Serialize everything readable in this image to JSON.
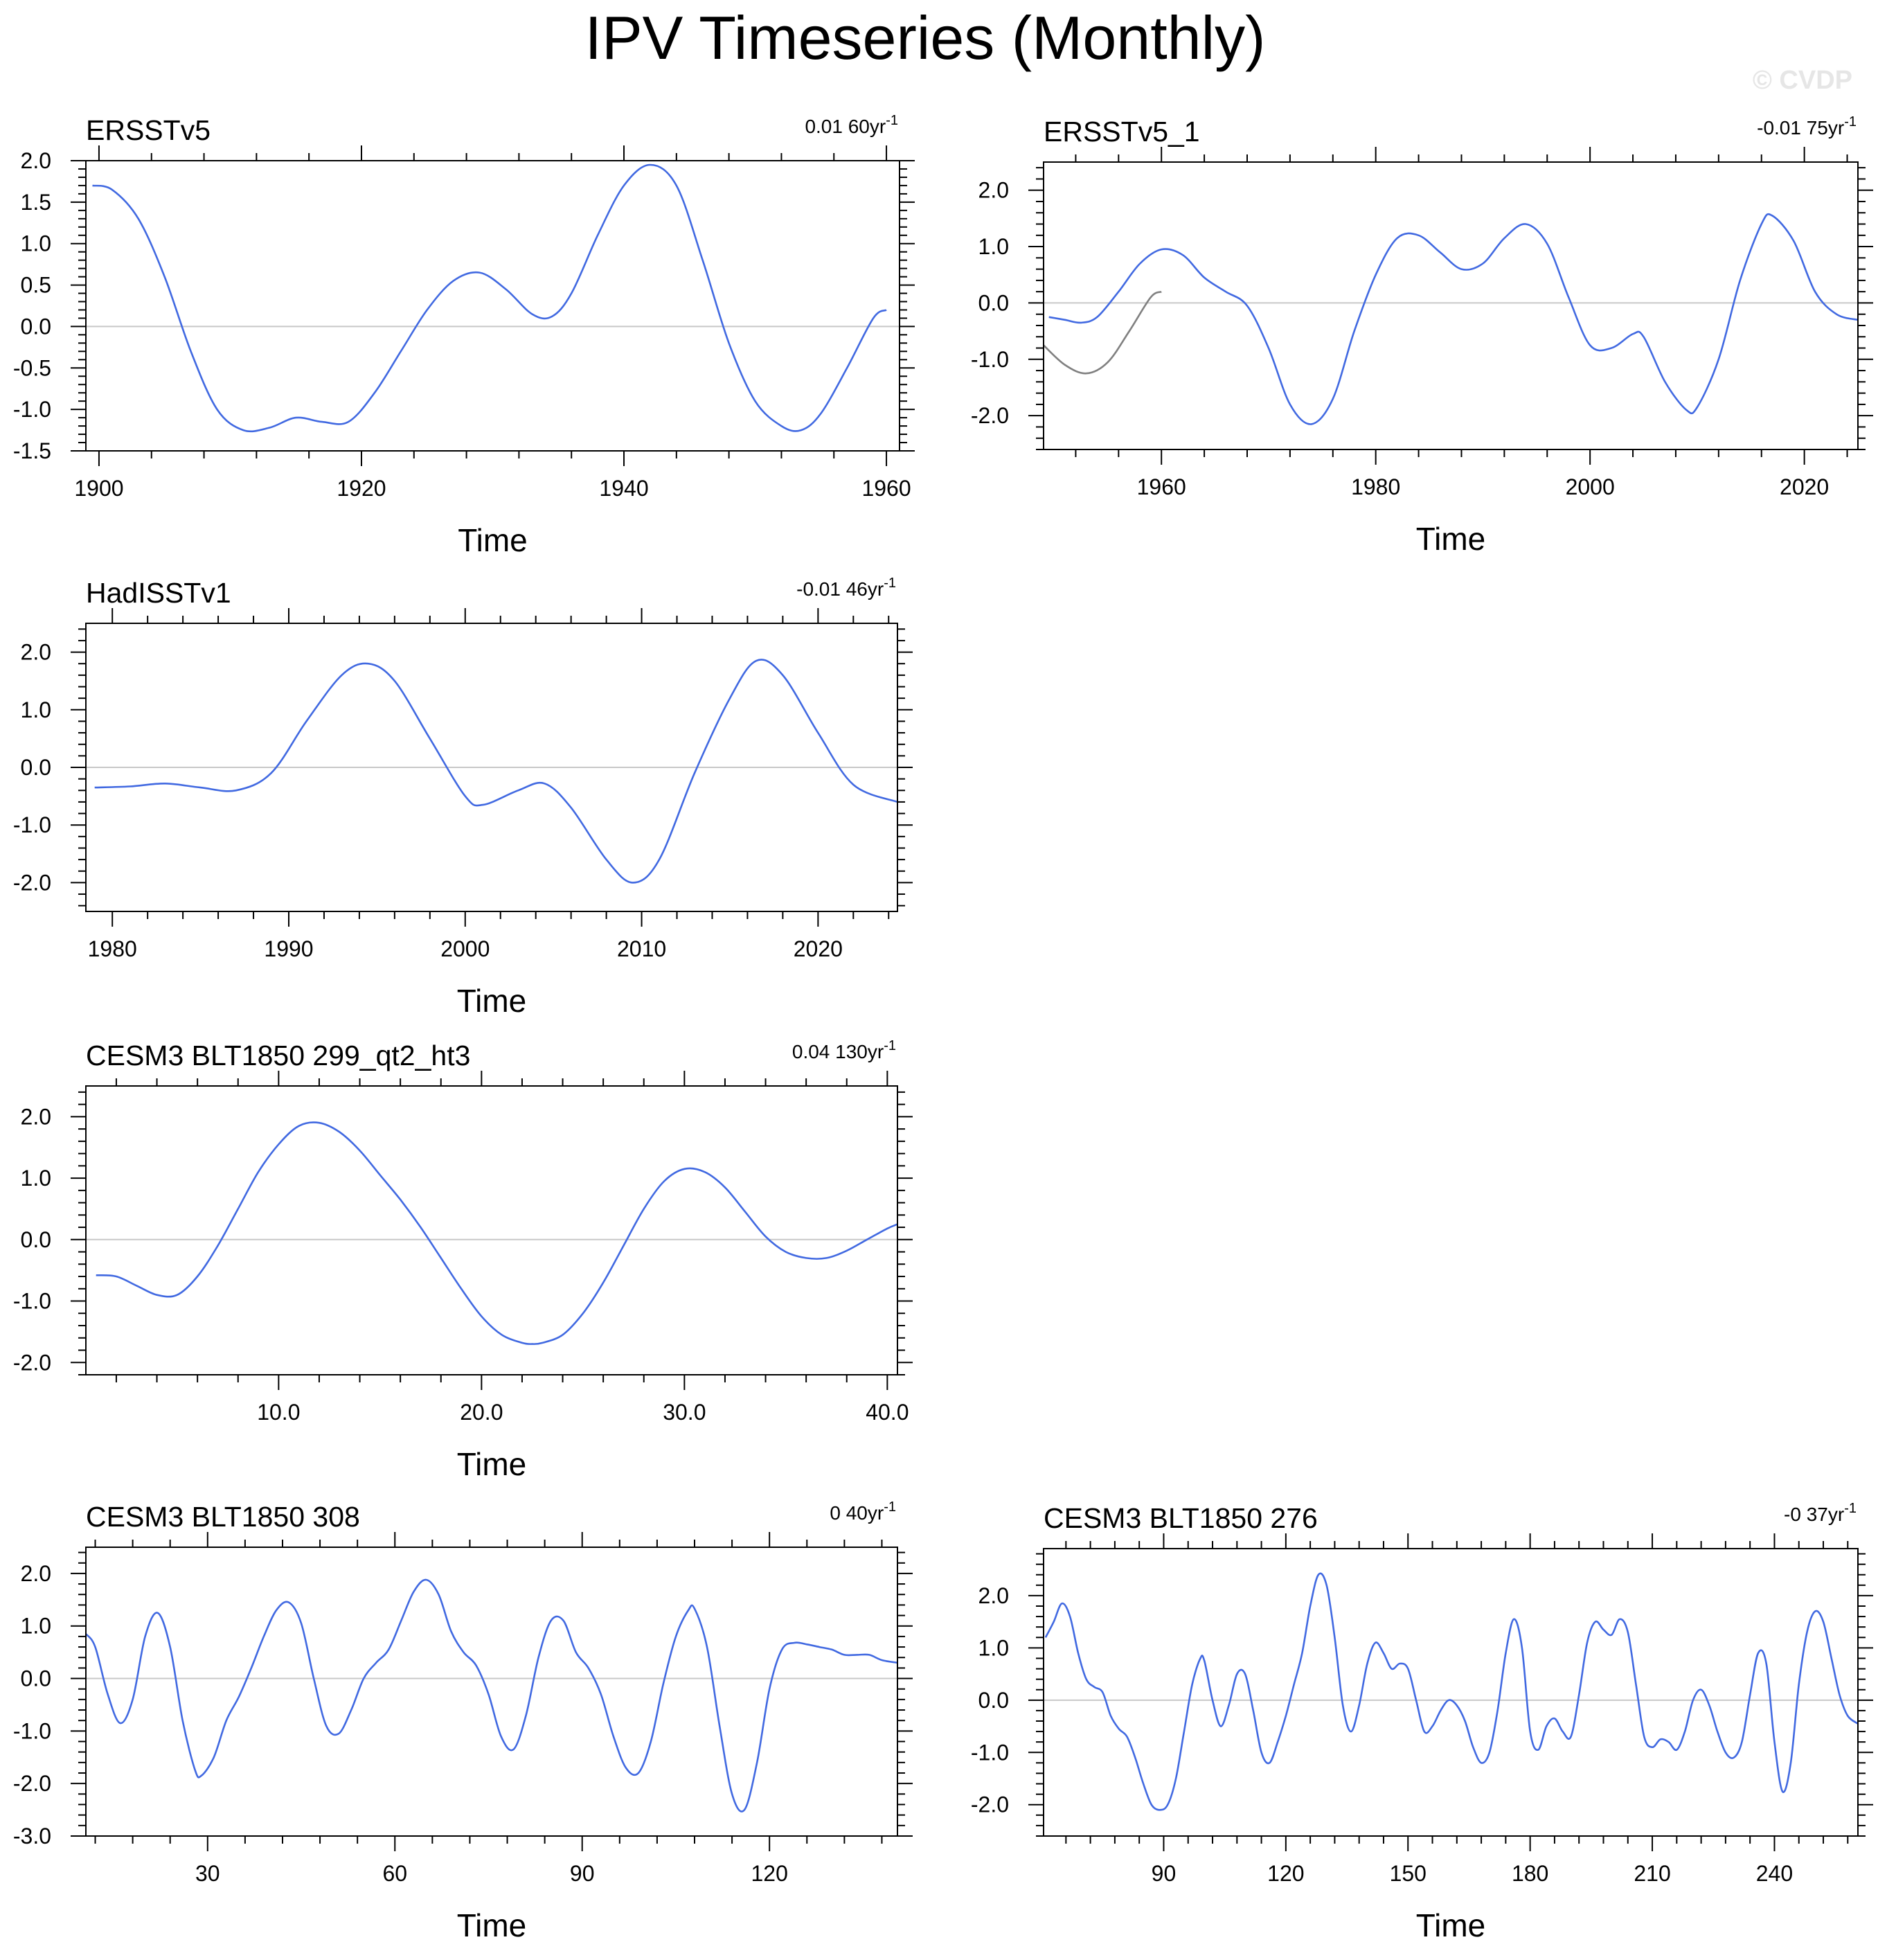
{
  "figure": {
    "title": "IPV Timeseries (Monthly)",
    "watermark": "© CVDP"
  },
  "colors": {
    "series_line": "#4169e1",
    "secondary_line": "#808080",
    "zero_line": "#c8c8c8",
    "frame": "#000000"
  },
  "chart_data": [
    {
      "id": "ersstv5",
      "type": "line",
      "title": "ERSSTv5",
      "trend": "0.01 60yr",
      "trend_sup": "-1",
      "xlabel": "Time",
      "ylabel": "",
      "xlim": [
        1899,
        1961
      ],
      "ylim": [
        -1.5,
        2.0
      ],
      "zero_line": true,
      "xticks": [
        1900,
        1920,
        1940,
        1960
      ],
      "xtick_labels": [
        "1900",
        "1920",
        "1940",
        "1960"
      ],
      "yticks": [
        -1.5,
        -1.0,
        -0.5,
        0.0,
        0.5,
        1.0,
        1.5,
        2.0
      ],
      "ytick_labels": [
        "-1.5",
        "-1.0",
        "-0.5",
        "0.0",
        "0.5",
        "1.0",
        "1.5",
        "2.0"
      ],
      "series": [
        {
          "color": "#4169e1",
          "x": [
            1899.5,
            1901,
            1903,
            1905,
            1907,
            1909,
            1911,
            1913,
            1915,
            1917,
            1919,
            1921,
            1923,
            1925,
            1927,
            1929,
            1931,
            1933,
            1934.5,
            1936,
            1938,
            1940,
            1942,
            1944,
            1946,
            1948,
            1950,
            1952,
            1953.5,
            1955,
            1957,
            1959,
            1960
          ],
          "y": [
            1.7,
            1.65,
            1.3,
            0.6,
            -0.3,
            -1.0,
            -1.25,
            -1.22,
            -1.1,
            -1.15,
            -1.15,
            -0.8,
            -0.3,
            0.2,
            0.55,
            0.65,
            0.45,
            0.15,
            0.12,
            0.4,
            1.1,
            1.7,
            1.95,
            1.7,
            0.8,
            -0.2,
            -0.9,
            -1.2,
            -1.25,
            -1.05,
            -0.5,
            0.1,
            0.2
          ]
        }
      ]
    },
    {
      "id": "ersstv5_1",
      "type": "line",
      "title": "ERSSTv5_1",
      "trend": "-0.01 75yr",
      "trend_sup": "-1",
      "xlabel": "Time",
      "ylabel": "",
      "xlim": [
        1949,
        2025
      ],
      "ylim": [
        -2.6,
        2.5
      ],
      "zero_line": true,
      "xticks": [
        1960,
        1980,
        2000,
        2020
      ],
      "xtick_labels": [
        "1960",
        "1980",
        "2000",
        "2020"
      ],
      "yticks": [
        -2.0,
        -1.0,
        0.0,
        1.0,
        2.0
      ],
      "ytick_labels": [
        "-2.0",
        "-1.0",
        "0.0",
        "1.0",
        "2.0"
      ],
      "series": [
        {
          "color": "#808080",
          "x": [
            1949,
            1951,
            1953,
            1955,
            1957,
            1959,
            1960
          ],
          "y": [
            -0.75,
            -1.1,
            -1.25,
            -1.05,
            -0.5,
            0.1,
            0.2
          ]
        },
        {
          "color": "#4169e1",
          "x": [
            1949.5,
            1951,
            1952.5,
            1954,
            1956,
            1958,
            1960,
            1962,
            1964,
            1966,
            1968,
            1970,
            1972,
            1974,
            1976,
            1978,
            1980,
            1982,
            1984,
            1986,
            1988,
            1990,
            1992,
            1994,
            1996,
            1998,
            2000,
            2002,
            2004,
            2005,
            2007,
            2009,
            2010,
            2012,
            2014,
            2016,
            2017,
            2019,
            2021,
            2023,
            2025
          ],
          "y": [
            -0.25,
            -0.3,
            -0.35,
            -0.25,
            0.2,
            0.7,
            0.95,
            0.85,
            0.45,
            0.2,
            -0.05,
            -0.8,
            -1.8,
            -2.15,
            -1.7,
            -0.5,
            0.5,
            1.15,
            1.2,
            0.9,
            0.6,
            0.7,
            1.15,
            1.4,
            1.05,
            0.1,
            -0.75,
            -0.8,
            -0.55,
            -0.6,
            -1.4,
            -1.9,
            -1.85,
            -1.0,
            0.4,
            1.4,
            1.55,
            1.1,
            0.2,
            -0.2,
            -0.3
          ]
        }
      ]
    },
    {
      "id": "hadisstv1",
      "type": "line",
      "title": "HadISSTv1",
      "trend": "-0.01 46yr",
      "trend_sup": "-1",
      "xlabel": "Time",
      "ylabel": "",
      "xlim": [
        1978.5,
        2024.5
      ],
      "ylim": [
        -2.5,
        2.5
      ],
      "zero_line": true,
      "xticks": [
        1980,
        1990,
        2000,
        2010,
        2020
      ],
      "xtick_labels": [
        "1980",
        "1990",
        "2000",
        "2010",
        "2020"
      ],
      "yticks": [
        -2.0,
        -1.0,
        0.0,
        1.0,
        2.0
      ],
      "ytick_labels": [
        "-2.0",
        "-1.0",
        "0.0",
        "1.0",
        "2.0"
      ],
      "series": [
        {
          "color": "#4169e1",
          "x": [
            1979,
            1981,
            1983,
            1985,
            1987,
            1989,
            1991,
            1993,
            1994.5,
            1996,
            1998,
            2000,
            2001,
            2003,
            2004.5,
            2006,
            2008,
            2009.5,
            2011,
            2013,
            2015,
            2016.5,
            2018,
            2020,
            2022,
            2024.5
          ],
          "y": [
            -0.35,
            -0.33,
            -0.28,
            -0.35,
            -0.4,
            -0.1,
            0.8,
            1.6,
            1.8,
            1.5,
            0.5,
            -0.5,
            -0.65,
            -0.4,
            -0.28,
            -0.7,
            -1.6,
            -2.0,
            -1.6,
            -0.1,
            1.2,
            1.85,
            1.6,
            0.6,
            -0.3,
            -0.6
          ]
        }
      ]
    },
    {
      "id": "cesm3_299",
      "type": "line",
      "title": "CESM3 BLT1850 299_qt2_ht3",
      "trend": "0.04 130yr",
      "trend_sup": "-1",
      "xlabel": "Time",
      "ylabel": "",
      "xlim": [
        0.5,
        40.5
      ],
      "ylim": [
        -2.2,
        2.5
      ],
      "zero_line": true,
      "xticks": [
        10,
        20,
        30,
        40
      ],
      "xtick_labels": [
        "10.0",
        "20.0",
        "30.0",
        "40.0"
      ],
      "yticks": [
        -2.0,
        -1.0,
        0.0,
        1.0,
        2.0
      ],
      "ytick_labels": [
        "-2.0",
        "-1.0",
        "0.0",
        "1.0",
        "2.0"
      ],
      "series": [
        {
          "color": "#4169e1",
          "x": [
            1,
            2,
            3,
            4,
            5,
            6,
            7,
            8,
            9,
            10,
            11,
            12,
            13,
            14,
            15,
            16,
            17,
            18,
            19,
            20,
            21,
            22,
            22.5,
            23,
            24,
            25,
            26,
            27,
            28,
            29,
            30,
            31,
            32,
            33,
            34,
            35,
            36,
            37,
            38,
            39,
            40,
            40.5
          ],
          "y": [
            -0.58,
            -0.6,
            -0.75,
            -0.9,
            -0.9,
            -0.6,
            -0.1,
            0.5,
            1.1,
            1.55,
            1.85,
            1.9,
            1.75,
            1.45,
            1.05,
            0.65,
            0.2,
            -0.3,
            -0.8,
            -1.25,
            -1.55,
            -1.68,
            -1.7,
            -1.68,
            -1.55,
            -1.2,
            -0.7,
            -0.1,
            0.5,
            0.95,
            1.15,
            1.1,
            0.85,
            0.45,
            0.05,
            -0.2,
            -0.3,
            -0.3,
            -0.18,
            0.0,
            0.18,
            0.25
          ]
        }
      ]
    },
    {
      "id": "cesm3_308",
      "type": "line",
      "title": "CESM3 BLT1850 308",
      "trend": "0 40yr",
      "trend_sup": "-1",
      "xlabel": "Time",
      "ylabel": "",
      "xlim": [
        10.5,
        140.5
      ],
      "ylim": [
        -3.0,
        2.5
      ],
      "zero_line": true,
      "xticks": [
        30,
        60,
        90,
        120
      ],
      "xtick_labels": [
        "30",
        "60",
        "90",
        "120"
      ],
      "yticks": [
        -3.0,
        -2.0,
        -1.0,
        0.0,
        1.0,
        2.0
      ],
      "ytick_labels": [
        "-3.0",
        "-2.0",
        "-1.0",
        "0.0",
        "1.0",
        "2.0"
      ],
      "series": [
        {
          "color": "#4169e1",
          "x": [
            10.5,
            12,
            14,
            16,
            18,
            20,
            22,
            24,
            26,
            28,
            29,
            31,
            33,
            35,
            37,
            39,
            41,
            43,
            45,
            47,
            49,
            51,
            53,
            55,
            57,
            59,
            61,
            63,
            65,
            67,
            69,
            71,
            73,
            75,
            77,
            79,
            81,
            83,
            85,
            87,
            89,
            91,
            93,
            95,
            97,
            99,
            101,
            103,
            105,
            107,
            108,
            110,
            112,
            114,
            116,
            118,
            120,
            122,
            124,
            126,
            128,
            130,
            132,
            134,
            136,
            138,
            140.5
          ],
          "y": [
            0.85,
            0.6,
            -0.3,
            -0.85,
            -0.4,
            0.8,
            1.25,
            0.6,
            -0.8,
            -1.75,
            -1.85,
            -1.5,
            -0.8,
            -0.35,
            0.2,
            0.8,
            1.3,
            1.45,
            1.05,
            0.0,
            -0.9,
            -1.05,
            -0.6,
            0.0,
            0.3,
            0.55,
            1.1,
            1.65,
            1.88,
            1.6,
            0.9,
            0.5,
            0.25,
            -0.3,
            -1.1,
            -1.35,
            -0.7,
            0.4,
            1.1,
            1.1,
            0.5,
            0.2,
            -0.3,
            -1.1,
            -1.7,
            -1.8,
            -1.2,
            -0.1,
            0.8,
            1.3,
            1.33,
            0.6,
            -0.9,
            -2.2,
            -2.5,
            -1.6,
            -0.2,
            0.55,
            0.68,
            0.65,
            0.6,
            0.55,
            0.45,
            0.45,
            0.45,
            0.35,
            0.3
          ]
        }
      ]
    },
    {
      "id": "cesm3_276",
      "type": "line",
      "title": "CESM3 BLT1850 276",
      "trend": "-0 37yr",
      "trend_sup": "-1",
      "xlabel": "Time",
      "ylabel": "",
      "xlim": [
        60.5,
        260.5
      ],
      "ylim": [
        -2.6,
        2.9
      ],
      "zero_line": true,
      "xticks": [
        90,
        120,
        150,
        180,
        210,
        240
      ],
      "xtick_labels": [
        "90",
        "120",
        "150",
        "180",
        "210",
        "240"
      ],
      "yticks": [
        -2.0,
        -1.0,
        0.0,
        1.0,
        2.0
      ],
      "ytick_labels": [
        "-2.0",
        "-1.0",
        "0.0",
        "1.0",
        "2.0"
      ],
      "series": [
        {
          "color": "#4169e1",
          "x": [
            61,
            63,
            65,
            67,
            69,
            71,
            73,
            75,
            77,
            79,
            81,
            83,
            85,
            87,
            89,
            91,
            93,
            95,
            97,
            99,
            100,
            102,
            104,
            106,
            108,
            110,
            112,
            114,
            116,
            118,
            120,
            122,
            124,
            126,
            128,
            130,
            132,
            134,
            136,
            138,
            140,
            142,
            144,
            146,
            148,
            150,
            152,
            154,
            156,
            158,
            160,
            162,
            164,
            166,
            168,
            170,
            172,
            174,
            176,
            178,
            180,
            182,
            184,
            186,
            188,
            190,
            192,
            194,
            196,
            198,
            200,
            202,
            204,
            206,
            208,
            210,
            212,
            214,
            216,
            218,
            220,
            222,
            224,
            226,
            228,
            230,
            232,
            234,
            236,
            238,
            240,
            242,
            244,
            246,
            248,
            250,
            252,
            254,
            256,
            258,
            260.5
          ],
          "y": [
            1.2,
            1.5,
            1.85,
            1.6,
            0.9,
            0.4,
            0.25,
            0.15,
            -0.3,
            -0.55,
            -0.7,
            -1.1,
            -1.6,
            -2.0,
            -2.1,
            -2.0,
            -1.5,
            -0.6,
            0.3,
            0.8,
            0.75,
            0.0,
            -0.5,
            -0.1,
            0.5,
            0.5,
            -0.2,
            -1.0,
            -1.2,
            -0.8,
            -0.3,
            0.3,
            0.9,
            1.8,
            2.4,
            2.2,
            1.2,
            -0.1,
            -0.6,
            -0.1,
            0.7,
            1.1,
            0.9,
            0.6,
            0.7,
            0.6,
            0.0,
            -0.6,
            -0.5,
            -0.2,
            0.0,
            -0.1,
            -0.4,
            -0.9,
            -1.2,
            -1.0,
            -0.2,
            0.9,
            1.55,
            1.0,
            -0.6,
            -0.95,
            -0.5,
            -0.35,
            -0.6,
            -0.7,
            0.1,
            1.1,
            1.5,
            1.35,
            1.25,
            1.55,
            1.3,
            0.3,
            -0.7,
            -0.9,
            -0.75,
            -0.8,
            -0.95,
            -0.6,
            0.0,
            0.2,
            -0.1,
            -0.6,
            -1.0,
            -1.1,
            -0.8,
            0.1,
            0.9,
            0.7,
            -0.8,
            -1.75,
            -1.2,
            0.3,
            1.3,
            1.7,
            1.5,
            0.8,
            0.1,
            -0.3,
            -0.45
          ]
        }
      ]
    }
  ]
}
